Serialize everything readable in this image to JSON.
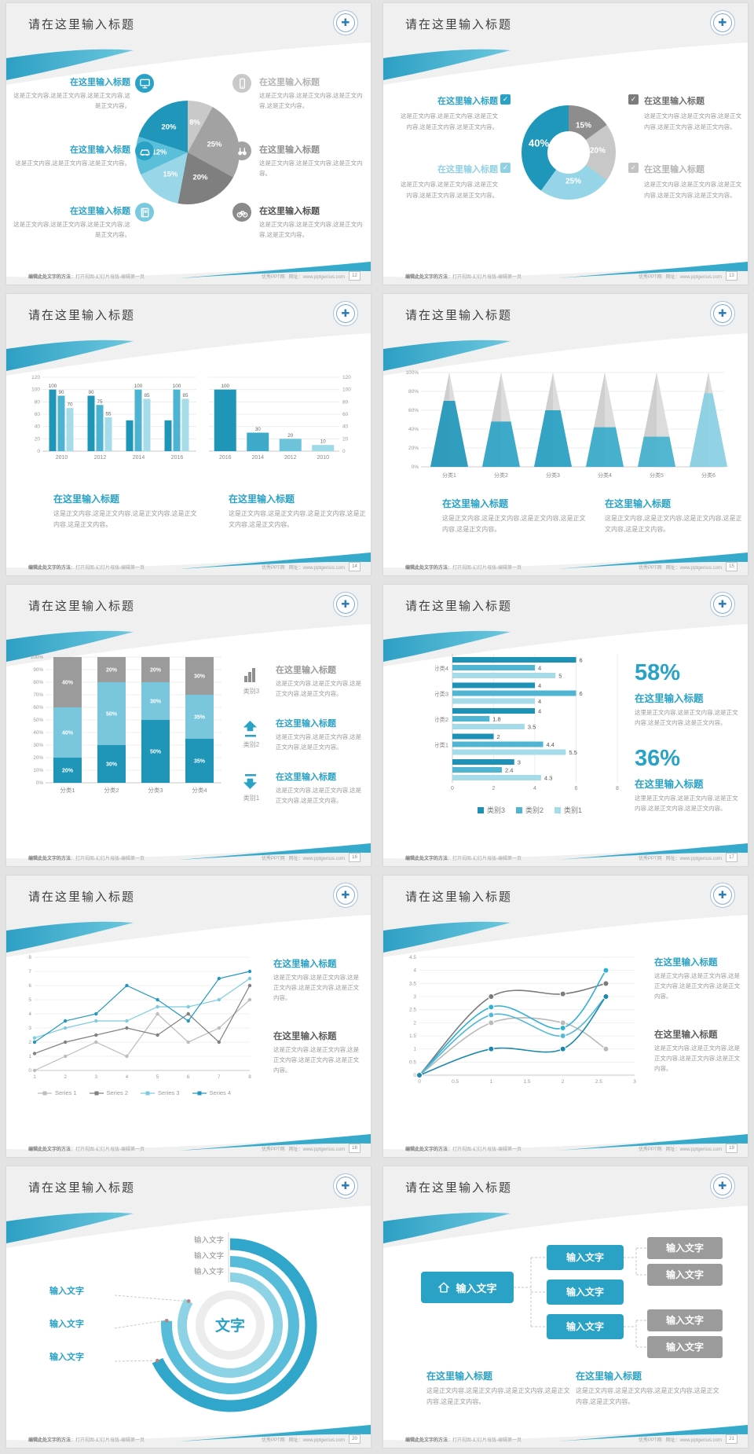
{
  "accent": "#2aa2c5",
  "page_bg": "#e3e3e3",
  "footer": {
    "left_bold": "编辑此处文字的方法",
    "left_rest": "：打开视图-幻灯片母版-编辑第一页",
    "site": "优秀PPT网",
    "url": "网址：www.pptgenius.com"
  },
  "logo_glyph": "✚",
  "slides": {
    "s12": {
      "title": "请在这里输入标题",
      "page": "12",
      "left": [
        {
          "title": "在这里输入标题",
          "body": "这是正文内容,这是正文内容,这是正文内容,这是正文内容。",
          "icon": "monitor-icon",
          "icon_color": "#2aa2c5",
          "title_color": "#2aa2c5"
        },
        {
          "title": "在这里输入标题",
          "body": "这是正文内容,这是正文内容,这是正文内容。",
          "icon": "car-icon",
          "icon_color": "#2aa2c5",
          "title_color": "#2aa2c5"
        },
        {
          "title": "在这里输入标题",
          "body": "这是正文内容,这是正文内容,这是正文内容,这是正文内容。",
          "icon": "book-icon",
          "icon_color": "#79c9df",
          "title_color": "#2aa2c5"
        }
      ],
      "right": [
        {
          "title": "在这里输入标题",
          "body": "这是正文内容,这是正文内容,这是正文内容,这是正文内容。",
          "icon": "phone-icon",
          "icon_color": "#c9c9c9",
          "title_color": "#b3b3b3"
        },
        {
          "title": "在这里输入标题",
          "body": "这是正文内容,这是正文内容,这是正文内容。",
          "icon": "binoculars-icon",
          "icon_color": "#a3a3a3",
          "title_color": "#8f8f8f"
        },
        {
          "title": "在这里输入标题",
          "body": "这是正文内容,这是正文内容,这是正文内容,这是正文内容。",
          "icon": "bicycle-icon",
          "icon_color": "#8a8a8a",
          "title_color": "#4f4f4f"
        }
      ]
    },
    "s13": {
      "title": "请在这里输入标题",
      "page": "13",
      "blocks_left": [
        {
          "title": "在这里输入标题",
          "body": "这是正文内容,这是正文内容,这是正文内容,这是正文内容,这是正文内容。",
          "title_color": "#2aa2c5",
          "check_color": "#2aa2c5"
        },
        {
          "title": "在这里输入标题",
          "body": "这是正文内容,这是正文内容,这是正文内容,这是正文内容,这是正文内容。",
          "title_color": "#8fd0e3",
          "check_color": "#8fd0e3"
        }
      ],
      "blocks_right": [
        {
          "title": "在这里输入标题",
          "body": "这是正文内容,这是正文内容,这是正文内容,这是正文内容,这是正文内容。",
          "title_color": "#6e6e6e",
          "check_color": "#7b7b7b"
        },
        {
          "title": "在这里输入标题",
          "body": "这是正文内容,这是正文内容,这是正文内容,这是正文内容,这是正文内容。",
          "title_color": "#b5b5b5",
          "check_color": "#c3c3c3"
        }
      ]
    },
    "s14": {
      "title": "请在这里输入标题",
      "page": "14",
      "blocks": [
        {
          "title": "在这里输入标题",
          "body": "这是正文内容,这是正文内容,这是正文内容,这是正文内容,这是正文内容。"
        },
        {
          "title": "在这里输入标题",
          "body": "这是正文内容,这是正文内容,这是正文内容,这是正文内容,这是正文内容。"
        }
      ]
    },
    "s15": {
      "title": "请在这里输入标题",
      "page": "15",
      "blocks": [
        {
          "title": "在这里输入标题",
          "body": "这是正文内容,这是正文内容,这是正文内容,这是正文内容,这是正文内容。"
        },
        {
          "title": "在这里输入标题",
          "body": "这是正文内容,这是正文内容,这是正文内容,这是正文内容,这是正文内容。"
        }
      ]
    },
    "s16": {
      "title": "请在这里输入标题",
      "page": "16",
      "items": [
        {
          "icon": "bar-chart-icon",
          "cat": "类别3",
          "title": "在这里输入标题",
          "body": "这是正文内容,这是正文内容,这是正文内容,这是正文内容。",
          "title_color": "#9a9a9a"
        },
        {
          "icon": "arrow-up-icon",
          "cat": "类别2",
          "title": "在这里输入标题",
          "body": "这是正文内容,这是正文内容,这是正文内容,这是正文内容。",
          "title_color": "#2aa2c5"
        },
        {
          "icon": "arrow-down-icon",
          "cat": "类别1",
          "title": "在这里输入标题",
          "body": "这是正文内容,这是正文内容,这是正文内容,这是正文内容。",
          "title_color": "#2aa2c5"
        }
      ]
    },
    "s17": {
      "title": "请在这里输入标题",
      "page": "17",
      "stats": [
        {
          "pct": "58%",
          "title": "在这里输入标题",
          "body": "这里是正文内容,这是正文内容,这是正文内容,这是正文内容,这是正文内容。"
        },
        {
          "pct": "36%",
          "title": "在这里输入标题",
          "body": "这里是正文内容,这是正文内容,这是正文内容,这是正文内容,这是正文内容。"
        }
      ]
    },
    "s18": {
      "title": "请在这里输入标题",
      "page": "18",
      "blocks": [
        {
          "title": "在这里输入标题",
          "body": "这是正文内容,这是正文内容,这是正文内容,这是正文内容,这是正文内容。",
          "title_color": "#2aa2c5"
        },
        {
          "title": "在这里输入标题",
          "body": "这是正文内容,这是正文内容,这是正文内容,这是正文内容,这是正文内容。",
          "title_color": "#5c5c5c"
        }
      ]
    },
    "s19": {
      "title": "请在这里输入标题",
      "page": "19",
      "blocks": [
        {
          "title": "在这里输入标题",
          "body": "这是正文内容,这是正文内容,这是正文内容,这是正文内容,这是正文内容。",
          "title_color": "#2aa2c5"
        },
        {
          "title": "在这里输入标题",
          "body": "这是正文内容,这是正文内容,这是正文内容,这是正文内容,这是正文内容。",
          "title_color": "#5c5c5c"
        }
      ]
    },
    "s20": {
      "title": "请在这里输入标题",
      "page": "20"
    },
    "s21": {
      "title": "请在这里输入标题",
      "page": "21",
      "root_label": "输入文字",
      "mid_labels": [
        "输入文字",
        "输入文字",
        "输入文字"
      ],
      "leaf_labels": [
        "输入文字",
        "输入文字",
        "输入文字",
        "输入文字"
      ],
      "blocks": [
        {
          "title": "在这里输入标题",
          "body": "这是正文内容,这是正文内容,这是正文内容,这是正文内容,这是正文内容。"
        },
        {
          "title": "在这里输入标题",
          "body": "这是正文内容,这是正文内容,这是正文内容,这是正文内容,这是正文内容。"
        }
      ]
    }
  },
  "chart_data": [
    {
      "id": "pie-12",
      "type": "pie",
      "slide_page": "12",
      "order": "clockwise-from-top",
      "values": [
        8,
        25,
        20,
        15,
        12,
        20
      ],
      "labels": [
        "8%",
        "25%",
        "20%",
        "15%",
        "12%",
        "20%"
      ],
      "colors": [
        "#c9c9c9",
        "#a2a2a2",
        "#7f7f7f",
        "#98d6e8",
        "#5bbfda",
        "#2096ba"
      ]
    },
    {
      "id": "donut-13",
      "type": "pie",
      "variant": "donut",
      "slide_page": "13",
      "values": [
        15,
        20,
        25,
        40
      ],
      "labels": [
        "15%",
        "20%",
        "25%",
        "40%"
      ],
      "colors": [
        "#8d8d8d",
        "#c8c8c8",
        "#96d5e7",
        "#1f97bb"
      ]
    },
    {
      "id": "bars-14a",
      "type": "bar",
      "slide_page": "14",
      "ylim": [
        0,
        120
      ],
      "yticks": [
        0,
        20,
        40,
        60,
        80,
        100,
        120
      ],
      "categories": [
        "2010",
        "2012",
        "2014",
        "2016"
      ],
      "series": [
        {
          "color": "#1f95b8",
          "values": [
            100,
            90,
            50,
            50
          ]
        },
        {
          "color": "#4db3d2",
          "values": [
            90,
            75,
            100,
            100
          ]
        },
        {
          "color": "#a6dcea",
          "values": [
            70,
            55,
            85,
            85
          ]
        }
      ],
      "show_labels": [
        [
          1,
          1,
          1
        ],
        [
          1,
          1,
          1
        ],
        [
          0,
          1,
          1
        ],
        [
          0,
          1,
          1
        ]
      ]
    },
    {
      "id": "bars-14b",
      "type": "bar",
      "slide_page": "14",
      "ylim": [
        0,
        120
      ],
      "yticks": [
        0,
        20,
        40,
        60,
        80,
        100,
        120
      ],
      "y_axis_side": "right",
      "categories": [
        "2016",
        "2014",
        "2012",
        "2010"
      ],
      "values": [
        100,
        30,
        20,
        10
      ],
      "bar_colors": [
        "#1f95b8",
        "#3ea9c9",
        "#6cc3da",
        "#9ed9e8"
      ]
    },
    {
      "id": "pyramids-15",
      "type": "pyramid",
      "slide_page": "15",
      "ylim": [
        0,
        100
      ],
      "yticks": [
        "0%",
        "20%",
        "40%",
        "60%",
        "80%",
        "100%"
      ],
      "categories": [
        "分类1",
        "分类2",
        "分类3",
        "分类4",
        "分类5",
        "分类6"
      ],
      "values_pct": [
        70,
        48,
        60,
        42,
        32,
        78
      ],
      "colors": [
        "#2398bc",
        "#2ea5c6",
        "#28a0c2",
        "#3aabca",
        "#47b2cf",
        "#8ad1e4"
      ]
    },
    {
      "id": "stack-16",
      "type": "stacked-bar-100",
      "slide_page": "16",
      "categories": [
        "分类1",
        "分类2",
        "分类3",
        "分类4"
      ],
      "segments_bottom_up": [
        [
          20,
          40,
          40
        ],
        [
          30,
          50,
          20
        ],
        [
          50,
          30,
          20
        ],
        [
          35,
          35,
          30
        ]
      ],
      "seg_colors": [
        "#1f95b8",
        "#7ac7dd",
        "#9b9b9b"
      ]
    },
    {
      "id": "hbars-17",
      "type": "horizontal-bar",
      "slide_page": "17",
      "xlim": [
        0,
        8
      ],
      "xticks": [
        0,
        2,
        4,
        6,
        8
      ],
      "legend": [
        "类别3",
        "类别2",
        "类别1"
      ],
      "legend_colors": [
        "#1d92b6",
        "#4fb5d3",
        "#a6dcea"
      ],
      "groups": [
        {
          "label": "分类4",
          "values": [
            6,
            4,
            5
          ]
        },
        {
          "label": "分类3",
          "values": [
            4,
            6,
            4
          ]
        },
        {
          "label": "分类2",
          "values": [
            4,
            1.8,
            3.5
          ]
        },
        {
          "label": "分类1",
          "values": [
            2,
            4.4,
            5.5
          ]
        },
        {
          "label": "",
          "values": [
            3,
            2.4,
            4.3
          ]
        }
      ]
    },
    {
      "id": "lines-18",
      "type": "line",
      "slide_page": "18",
      "x": [
        1,
        2,
        3,
        4,
        5,
        6,
        7,
        8
      ],
      "ylim": [
        0,
        8
      ],
      "series": [
        {
          "name": "Series 1",
          "color": "#bcbcbc",
          "values": [
            0,
            1,
            2,
            1,
            4,
            2,
            3,
            5
          ]
        },
        {
          "name": "Series 2",
          "color": "#808080",
          "values": [
            1.2,
            2,
            2.5,
            3,
            2.5,
            4,
            2,
            6
          ]
        },
        {
          "name": "Series 3",
          "color": "#7ecbe0",
          "values": [
            2.3,
            3,
            3.5,
            3.5,
            4.5,
            4.5,
            5,
            6.5
          ]
        },
        {
          "name": "Series 4",
          "color": "#2398bc",
          "values": [
            2,
            3.5,
            4,
            6,
            5,
            3.5,
            6.5,
            7
          ]
        }
      ]
    },
    {
      "id": "curves-19",
      "type": "line-smooth",
      "slide_page": "19",
      "xlim": [
        0,
        3
      ],
      "ylim": [
        0,
        4.5
      ],
      "xticks": [
        "0",
        "0.5",
        "1",
        "1.5",
        "2",
        "2.5",
        "3"
      ],
      "series": [
        {
          "color": "#7a7a7a",
          "points": [
            [
              0,
              0
            ],
            [
              1,
              3
            ],
            [
              2,
              3.1
            ],
            [
              2.6,
              3.5
            ]
          ]
        },
        {
          "color": "#b9b9b9",
          "points": [
            [
              0,
              0
            ],
            [
              1,
              2
            ],
            [
              2,
              2
            ],
            [
              2.6,
              1
            ]
          ]
        },
        {
          "color": "#2fb0d4",
          "points": [
            [
              0,
              0
            ],
            [
              1,
              2.6
            ],
            [
              2,
              1.8
            ],
            [
              2.6,
              4
            ]
          ]
        },
        {
          "color": "#53b9d5",
          "points": [
            [
              0,
              0
            ],
            [
              1,
              2.3
            ],
            [
              2,
              1.5
            ],
            [
              2.6,
              3
            ]
          ]
        },
        {
          "color": "#1b89ad",
          "points": [
            [
              0,
              0
            ],
            [
              1,
              1
            ],
            [
              2,
              1
            ],
            [
              2.6,
              3
            ]
          ]
        }
      ]
    },
    {
      "id": "rings-20",
      "type": "radial-arcs",
      "slide_page": "20",
      "center_label": "文字",
      "ring_labels": [
        "输入文字",
        "输入文字",
        "输入文字"
      ],
      "callout_labels": [
        "输入文字",
        "输入文字",
        "输入文字"
      ],
      "sweeps_deg": [
        244,
        274,
        300
      ],
      "colors": [
        "#2fa6ca",
        "#56bcd9",
        "#8ed3e5"
      ]
    }
  ]
}
